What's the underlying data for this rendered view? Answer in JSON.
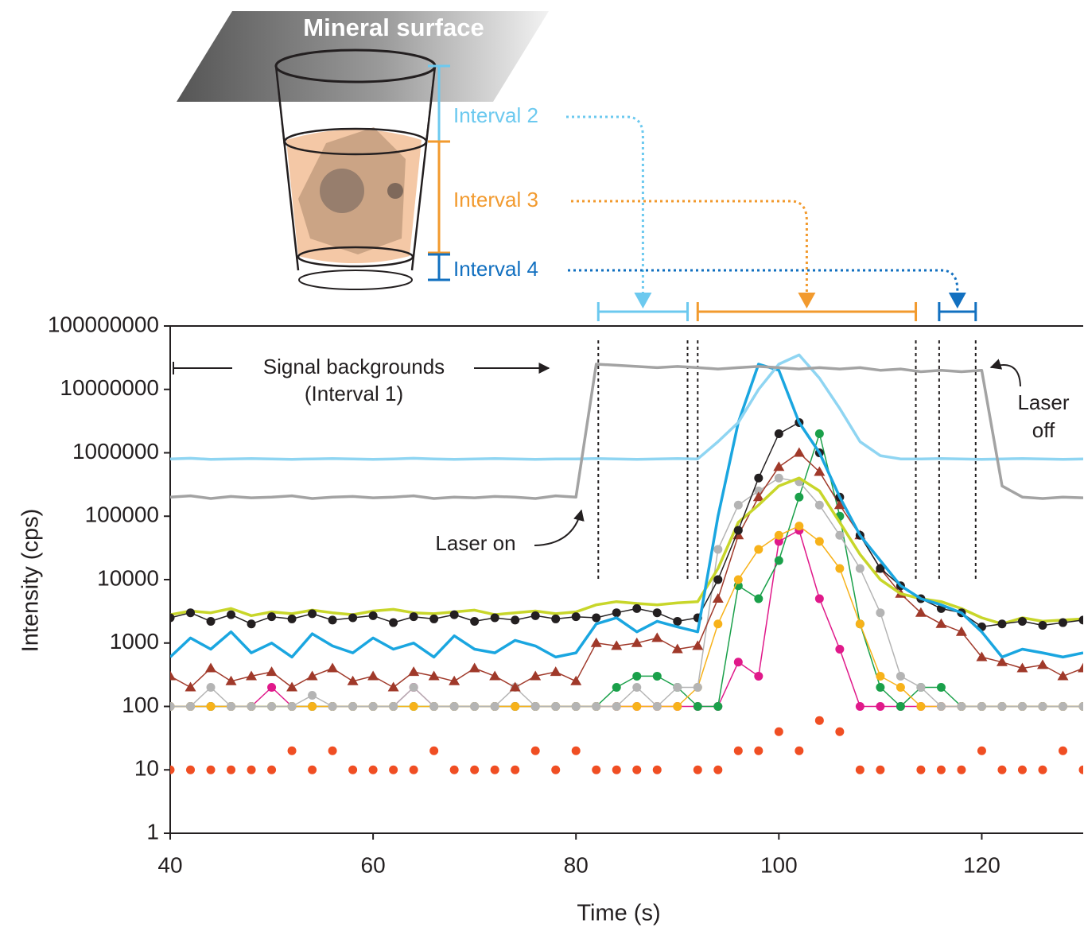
{
  "chart_data": {
    "type": "line",
    "diagram_title": "Mineral surface",
    "xlabel": "Time (s)",
    "ylabel": "Intensity (cps)",
    "log_y": true,
    "xlim": [
      40,
      130
    ],
    "ylim": [
      1,
      100000000
    ],
    "xticks": [
      40,
      60,
      80,
      100,
      120
    ],
    "yticks": [
      1,
      10,
      100,
      1000,
      10000,
      100000,
      1000000,
      10000000,
      100000000
    ],
    "intervals": [
      {
        "label": "Interval 2",
        "color": "#6cc9ef",
        "start": 82.2,
        "end": 91
      },
      {
        "label": "Interval 3",
        "color": "#f29a2e",
        "start": 92,
        "end": 113.5
      },
      {
        "label": "Interval 4",
        "color": "#1270c0",
        "start": 115.8,
        "end": 119.4
      }
    ],
    "annotations": {
      "background": "Signal backgrounds",
      "background_interval": "(Interval 1)",
      "laser_on": "Laser on",
      "laser_off_1": "Laser",
      "laser_off_2": "off"
    },
    "x": [
      40,
      42,
      44,
      46,
      48,
      50,
      52,
      54,
      56,
      58,
      60,
      62,
      64,
      66,
      68,
      70,
      72,
      74,
      76,
      78,
      80,
      82,
      84,
      86,
      88,
      90,
      92,
      94,
      96,
      98,
      100,
      102,
      104,
      106,
      108,
      110,
      112,
      114,
      116,
      118,
      120,
      122,
      124,
      126,
      128,
      130
    ],
    "series": [
      {
        "color": "#f04e23",
        "marker": "circle",
        "line": false,
        "values": [
          10,
          10,
          10,
          10,
          10,
          10,
          20,
          10,
          20,
          10,
          10,
          10,
          10,
          20,
          10,
          10,
          10,
          10,
          20,
          10,
          20,
          10,
          10,
          10,
          10,
          null,
          10,
          10,
          20,
          20,
          40,
          20,
          60,
          40,
          10,
          10,
          null,
          10,
          10,
          10,
          20,
          10,
          10,
          10,
          20,
          10
        ]
      },
      {
        "color": "#e0198a",
        "marker": "circle",
        "line": true,
        "values": [
          100,
          100,
          100,
          100,
          100,
          200,
          100,
          100,
          100,
          100,
          100,
          100,
          200,
          100,
          100,
          100,
          100,
          100,
          100,
          100,
          100,
          100,
          100,
          100,
          100,
          100,
          100,
          100,
          500,
          300,
          40000,
          60000,
          5000,
          800,
          100,
          100,
          100,
          100,
          100,
          100,
          100,
          100,
          100,
          100,
          100,
          100
        ]
      },
      {
        "color": "#1aa04a",
        "marker": "circle",
        "line": true,
        "values": [
          100,
          100,
          100,
          100,
          100,
          100,
          100,
          100,
          100,
          100,
          100,
          100,
          100,
          100,
          100,
          100,
          100,
          100,
          100,
          100,
          100,
          100,
          200,
          300,
          300,
          200,
          100,
          100,
          8000,
          5000,
          20000,
          200000,
          2000000,
          100000,
          2000,
          200,
          100,
          200,
          200,
          100,
          100,
          100,
          100,
          100,
          100,
          100
        ]
      },
      {
        "color": "#f7b21a",
        "marker": "circle",
        "line": true,
        "values": [
          100,
          100,
          100,
          100,
          100,
          100,
          100,
          100,
          100,
          100,
          100,
          100,
          100,
          100,
          100,
          100,
          100,
          100,
          100,
          100,
          100,
          100,
          100,
          100,
          100,
          100,
          200,
          2000,
          10000,
          30000,
          50000,
          70000,
          40000,
          15000,
          2000,
          300,
          200,
          100,
          100,
          100,
          100,
          100,
          100,
          100,
          100,
          100
        ]
      },
      {
        "color": "#b4b4b4",
        "marker": "circle",
        "line": true,
        "values": [
          100,
          100,
          200,
          100,
          100,
          100,
          100,
          150,
          100,
          100,
          100,
          100,
          200,
          100,
          100,
          100,
          100,
          200,
          100,
          100,
          100,
          100,
          100,
          200,
          100,
          200,
          200,
          30000,
          150000,
          250000,
          400000,
          350000,
          150000,
          50000,
          15000,
          3000,
          300,
          200,
          100,
          100,
          100,
          100,
          100,
          100,
          100,
          100
        ]
      },
      {
        "color": "#a0392a",
        "marker": "triangle",
        "line": true,
        "values": [
          300,
          200,
          400,
          250,
          300,
          350,
          200,
          300,
          400,
          250,
          300,
          200,
          350,
          300,
          250,
          400,
          300,
          200,
          300,
          350,
          250,
          1000,
          900,
          1000,
          1200,
          800,
          900,
          5000,
          50000,
          200000,
          600000,
          1000000,
          500000,
          150000,
          50000,
          15000,
          6000,
          3000,
          2000,
          1500,
          600,
          500,
          400,
          450,
          300,
          400
        ]
      },
      {
        "color": "#c8d62a",
        "marker": null,
        "line": true,
        "values": [
          2800,
          3200,
          3000,
          3500,
          2700,
          3100,
          2900,
          3300,
          3000,
          2800,
          3200,
          3400,
          3000,
          2900,
          3100,
          3300,
          2800,
          3000,
          3200,
          2900,
          3100,
          4000,
          4500,
          4200,
          4000,
          4300,
          4500,
          15000,
          80000,
          150000,
          300000,
          400000,
          250000,
          80000,
          25000,
          10000,
          6000,
          5000,
          4500,
          3500,
          2500,
          2000,
          2500,
          2200,
          2300,
          2400
        ]
      },
      {
        "color": "#231f20",
        "marker": "circle",
        "line": true,
        "values": [
          2500,
          3000,
          2200,
          2800,
          2000,
          2600,
          2400,
          2900,
          2300,
          2500,
          2700,
          2100,
          2600,
          2400,
          2800,
          2200,
          2500,
          2300,
          2700,
          2400,
          2600,
          2500,
          3000,
          3500,
          3000,
          2200,
          2500,
          10000,
          60000,
          400000,
          2000000,
          3000000,
          1000000,
          200000,
          50000,
          15000,
          8000,
          5000,
          3500,
          3000,
          1800,
          2000,
          2200,
          1900,
          2100,
          2300
        ]
      },
      {
        "color": "#1aa6e0",
        "marker": null,
        "line": true,
        "values": [
          600,
          1200,
          800,
          1500,
          700,
          1000,
          600,
          1400,
          900,
          700,
          1200,
          800,
          1000,
          600,
          1300,
          800,
          700,
          1100,
          900,
          600,
          700,
          2000,
          2500,
          1500,
          2200,
          1800,
          1500,
          100000,
          3000000,
          25000000,
          20000000,
          3000000,
          1000000,
          200000,
          50000,
          20000,
          8000,
          5000,
          4000,
          3000,
          1500,
          600,
          800,
          700,
          600,
          700
        ]
      },
      {
        "color": "#8fd5f2",
        "marker": null,
        "line": true,
        "values": [
          800000,
          820000,
          790000,
          800000,
          810000,
          800000,
          790000,
          800000,
          810000,
          800000,
          790000,
          800000,
          820000,
          800000,
          790000,
          800000,
          810000,
          800000,
          790000,
          800000,
          800000,
          810000,
          800000,
          790000,
          800000,
          810000,
          800000,
          1500000,
          3000000,
          10000000,
          25000000,
          35000000,
          15000000,
          5000000,
          1500000,
          900000,
          800000,
          800000,
          810000,
          800000,
          790000,
          800000,
          810000,
          800000,
          790000,
          800000
        ]
      },
      {
        "color": "#a3a3a3",
        "marker": null,
        "line": true,
        "values": [
          200000,
          210000,
          190000,
          205000,
          195000,
          200000,
          210000,
          190000,
          200000,
          205000,
          195000,
          200000,
          210000,
          190000,
          200000,
          195000,
          205000,
          200000,
          190000,
          210000,
          200000,
          25000000,
          24000000,
          23000000,
          22000000,
          23000000,
          22000000,
          21000000,
          22000000,
          23000000,
          22000000,
          21000000,
          22000000,
          21000000,
          22000000,
          20000000,
          21000000,
          19000000,
          20000000,
          19000000,
          20000000,
          300000,
          200000,
          190000,
          200000,
          195000
        ]
      }
    ]
  }
}
